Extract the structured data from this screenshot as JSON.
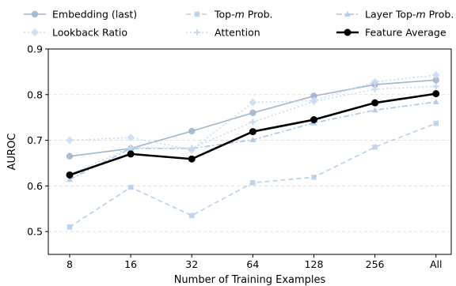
{
  "chart_data": {
    "type": "line",
    "title": "",
    "xlabel": "Number of Training Examples",
    "ylabel": "AUROC",
    "x": [
      "8",
      "16",
      "32",
      "64",
      "128",
      "256",
      "All"
    ],
    "ylim": [
      0.45,
      0.9
    ],
    "yticks": [
      "0.5",
      "0.6",
      "0.7",
      "0.8",
      "0.9"
    ],
    "grid": "horizontal dashed",
    "legend_position": "top, above plot",
    "series": [
      {
        "name": "Embedding (last)",
        "color": "#9fb4cf",
        "style": "solid",
        "marker": "circle",
        "values": [
          0.665,
          0.682,
          0.72,
          0.76,
          0.797,
          0.822,
          0.832
        ]
      },
      {
        "name": "Top-m Prob.",
        "name_prefix": "Top-",
        "name_italic": "m",
        "name_suffix": " Prob.",
        "color": "#b6cfea",
        "style": "dashed",
        "marker": "square",
        "values": [
          0.51,
          0.597,
          0.535,
          0.607,
          0.619,
          0.685,
          0.737
        ]
      },
      {
        "name": "Layer Top-m Prob.",
        "name_prefix": "Layer Top-",
        "name_italic": "m",
        "name_suffix": " Prob.",
        "color": "#a9c6e8",
        "style": "dashdot",
        "marker": "triangle",
        "values": [
          0.614,
          0.682,
          0.682,
          0.701,
          0.738,
          0.766,
          0.784
        ]
      },
      {
        "name": "Lookback Ratio",
        "color": "#c8dcf1",
        "style": "dotted",
        "marker": "diamond",
        "values": [
          0.7,
          0.706,
          0.679,
          0.783,
          0.787,
          0.828,
          0.843
        ]
      },
      {
        "name": "Attention",
        "color": "#c9daf0",
        "style": "dotted",
        "marker": "plus",
        "values": [
          0.625,
          0.684,
          0.683,
          0.74,
          0.785,
          0.812,
          0.818
        ]
      },
      {
        "name": "Feature Average",
        "color": "#000000",
        "style": "solid",
        "marker": "circle",
        "values": [
          0.624,
          0.67,
          0.659,
          0.719,
          0.745,
          0.782,
          0.802
        ]
      }
    ]
  }
}
